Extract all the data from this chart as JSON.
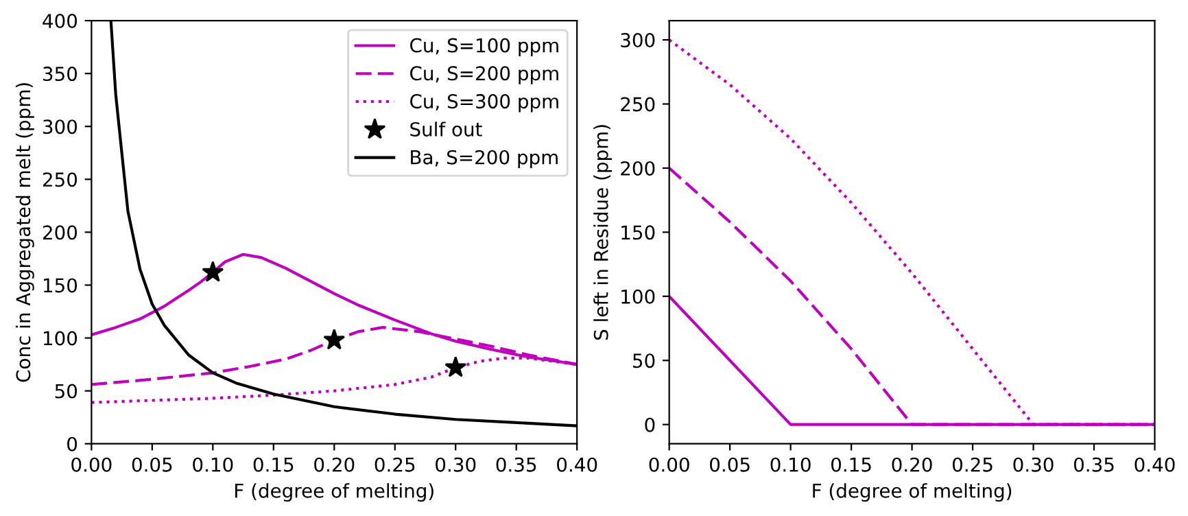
{
  "chart_data": [
    {
      "type": "line",
      "xlabel": "F (degree of melting)",
      "ylabel": "Conc in Aggregated melt (ppm)",
      "xlim": [
        0,
        0.4
      ],
      "ylim": [
        0,
        400
      ],
      "xticks": [
        {
          "value": 0,
          "label": "0.00"
        },
        {
          "value": 0.05,
          "label": "0.05"
        },
        {
          "value": 0.1,
          "label": "0.10"
        },
        {
          "value": 0.15,
          "label": "0.15"
        },
        {
          "value": 0.2,
          "label": "0.20"
        },
        {
          "value": 0.25,
          "label": "0.25"
        },
        {
          "value": 0.3,
          "label": "0.30"
        },
        {
          "value": 0.35,
          "label": "0.35"
        },
        {
          "value": 0.4,
          "label": "0.40"
        }
      ],
      "yticks": [
        0,
        50,
        100,
        150,
        200,
        250,
        300,
        350,
        400
      ],
      "grid": false,
      "legend": "top right",
      "series": [
        {
          "name": "Cu, S=100 ppm",
          "color": "#bf00bf",
          "line_style": "solid",
          "x": [
            0,
            0.02,
            0.04,
            0.06,
            0.08,
            0.09,
            0.1,
            0.11,
            0.125,
            0.14,
            0.16,
            0.18,
            0.2,
            0.22,
            0.25,
            0.28,
            0.3,
            0.33,
            0.36,
            0.4
          ],
          "values": [
            103,
            110,
            118,
            130,
            145,
            153,
            162,
            172,
            179,
            176,
            166,
            154,
            142,
            131,
            117,
            104,
            97,
            89,
            82,
            75
          ]
        },
        {
          "name": "Cu, S=200 ppm",
          "color": "#bf00bf",
          "line_style": "dashed",
          "x": [
            0,
            0.05,
            0.1,
            0.13,
            0.16,
            0.18,
            0.2,
            0.22,
            0.24,
            0.27,
            0.3,
            0.33,
            0.36,
            0.4
          ],
          "values": [
            56,
            61,
            67,
            73,
            80,
            88,
            98,
            106,
            110,
            106,
            99,
            92,
            84,
            75
          ]
        },
        {
          "name": "Cu, S=300 ppm",
          "color": "#bf00bf",
          "line_style": "dotted",
          "x": [
            0,
            0.1,
            0.15,
            0.2,
            0.25,
            0.28,
            0.3,
            0.32,
            0.34,
            0.36,
            0.38,
            0.4
          ],
          "values": [
            39,
            43,
            46,
            50,
            56,
            63,
            72,
            78,
            81,
            81,
            78,
            75
          ]
        },
        {
          "name": "Sulf out",
          "type": "scatter",
          "marker": "star",
          "color": "#000000",
          "x": [
            0.1,
            0.2,
            0.3
          ],
          "values": [
            162,
            98,
            72
          ]
        },
        {
          "name": "Ba, S=200 ppm",
          "color": "#000000",
          "line_style": "solid",
          "x": [
            0.016,
            0.02,
            0.03,
            0.04,
            0.05,
            0.06,
            0.08,
            0.1,
            0.12,
            0.15,
            0.2,
            0.25,
            0.3,
            0.35,
            0.4
          ],
          "values": [
            400,
            330,
            220,
            165,
            132,
            112,
            84,
            67,
            57,
            47,
            35,
            28,
            23,
            20,
            17
          ]
        }
      ]
    },
    {
      "type": "line",
      "xlabel": "F (degree of melting)",
      "ylabel": "S left in Residue (ppm)",
      "xlim": [
        0,
        0.4
      ],
      "ylim": [
        -15,
        315
      ],
      "xticks": [
        {
          "value": 0,
          "label": "0.00"
        },
        {
          "value": 0.05,
          "label": "0.05"
        },
        {
          "value": 0.1,
          "label": "0.10"
        },
        {
          "value": 0.15,
          "label": "0.15"
        },
        {
          "value": 0.2,
          "label": "0.20"
        },
        {
          "value": 0.25,
          "label": "0.25"
        },
        {
          "value": 0.3,
          "label": "0.30"
        },
        {
          "value": 0.35,
          "label": "0.35"
        },
        {
          "value": 0.4,
          "label": "0.40"
        }
      ],
      "yticks": [
        0,
        50,
        100,
        150,
        200,
        250,
        300
      ],
      "grid": false,
      "legend": false,
      "series": [
        {
          "color": "#bf00bf",
          "line_style": "solid",
          "x": [
            0,
            0.1,
            0.4
          ],
          "values": [
            100,
            0,
            0
          ]
        },
        {
          "color": "#bf00bf",
          "line_style": "dashed",
          "x": [
            0,
            0.05,
            0.1,
            0.15,
            0.2,
            0.4
          ],
          "values": [
            200,
            158,
            112,
            59,
            0,
            0
          ]
        },
        {
          "color": "#bf00bf",
          "line_style": "dotted",
          "x": [
            0,
            0.05,
            0.1,
            0.15,
            0.2,
            0.25,
            0.3,
            0.4
          ],
          "values": [
            300,
            265,
            223,
            173,
            118,
            59,
            0,
            0
          ]
        }
      ]
    }
  ]
}
